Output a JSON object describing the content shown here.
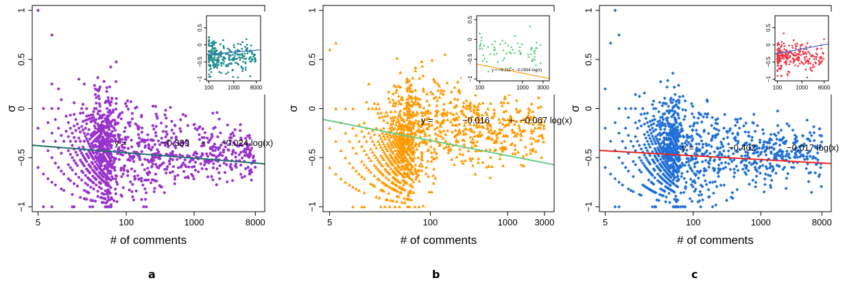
{
  "chart_data": [
    {
      "type": "scatter",
      "panel_label": "a",
      "xlabel": "# of comments",
      "ylabel": "σ",
      "xscale": "log",
      "xlim": [
        4.1,
        11000
      ],
      "ylim": [
        -1.05,
        1.05
      ],
      "xticks": [
        5,
        100,
        1000,
        8000
      ],
      "yticks": [
        -1,
        -0.5,
        0,
        0.5,
        1
      ],
      "grid": false,
      "marker": "circle",
      "point_color": "#9933cc",
      "fit": {
        "intercept": -0.339,
        "slope": -0.024,
        "color": "#1f6f6a",
        "label_parts": [
          "y =",
          "−0.339",
          "+",
          "−0.024 log(x)"
        ]
      },
      "inset": {
        "type": "scatter",
        "xscale": "log",
        "xlim": [
          80,
          12000
        ],
        "ylim": [
          -1.05,
          0.85
        ],
        "xticks": [
          100,
          1000,
          8000
        ],
        "yticks": [
          -1,
          -0.5,
          0,
          0.5
        ],
        "marker": "circle",
        "point_color": "#1a8a8a",
        "fit": {
          "intercept": -0.399,
          "slope": 0.027,
          "color": "#3366cc"
        }
      }
    },
    {
      "type": "scatter",
      "panel_label": "b",
      "xlabel": "# of comments",
      "ylabel": "σ",
      "xscale": "log",
      "xlim": [
        4.1,
        4000
      ],
      "ylim": [
        -1.05,
        1.05
      ],
      "xticks": [
        5,
        100,
        1000,
        3000
      ],
      "yticks": [
        -1,
        -0.5,
        0,
        0.5,
        1
      ],
      "grid": false,
      "marker": "triangle",
      "point_color": "#ff9900",
      "fit": {
        "intercept": -0.016,
        "slope": -0.067,
        "color": "#66cc88",
        "label_parts": [
          "y =",
          "−0.016",
          "+",
          "−0.067 log(x)"
        ]
      },
      "inset": {
        "type": "scatter",
        "xscale": "log",
        "xlim": [
          85,
          4200
        ],
        "ylim": [
          -1.05,
          0.6
        ],
        "xticks": [
          100,
          1000,
          3000
        ],
        "yticks": [
          -1,
          -0.5,
          0,
          0.5
        ],
        "marker": "triangle",
        "point_color": "#55cc77",
        "fit": {
          "intercept": -0.211,
          "slope": -0.0934,
          "color": "#ff9900",
          "label_parts": [
            "y = −0.211 + −0.0934 log(x)"
          ]
        }
      }
    },
    {
      "type": "scatter",
      "panel_label": "c",
      "xlabel": "# of comments",
      "ylabel": "σ",
      "xscale": "log",
      "xlim": [
        4.1,
        11000
      ],
      "ylim": [
        -1.05,
        1.05
      ],
      "xticks": [
        5,
        100,
        1000,
        8000
      ],
      "yticks": [
        -1,
        -0.5,
        0,
        0.5,
        1
      ],
      "grid": false,
      "marker": "diamond",
      "point_color": "#1f6fd6",
      "fit": {
        "intercept": -0.402,
        "slope": -0.017,
        "color": "#ee2222",
        "label_parts": [
          "y =",
          "−0.402",
          "+",
          "−0.017 log(x)"
        ]
      },
      "inset": {
        "type": "scatter",
        "xscale": "log",
        "xlim": [
          80,
          12000
        ],
        "ylim": [
          -1.05,
          0.85
        ],
        "xticks": [
          100,
          1000,
          8000
        ],
        "yticks": [
          -1,
          -0.5,
          0,
          0.5
        ],
        "marker": "diamond",
        "point_color": "#ee3344",
        "fit": {
          "intercept": -0.526,
          "slope": 0.059,
          "color": "#3366cc"
        }
      }
    }
  ]
}
